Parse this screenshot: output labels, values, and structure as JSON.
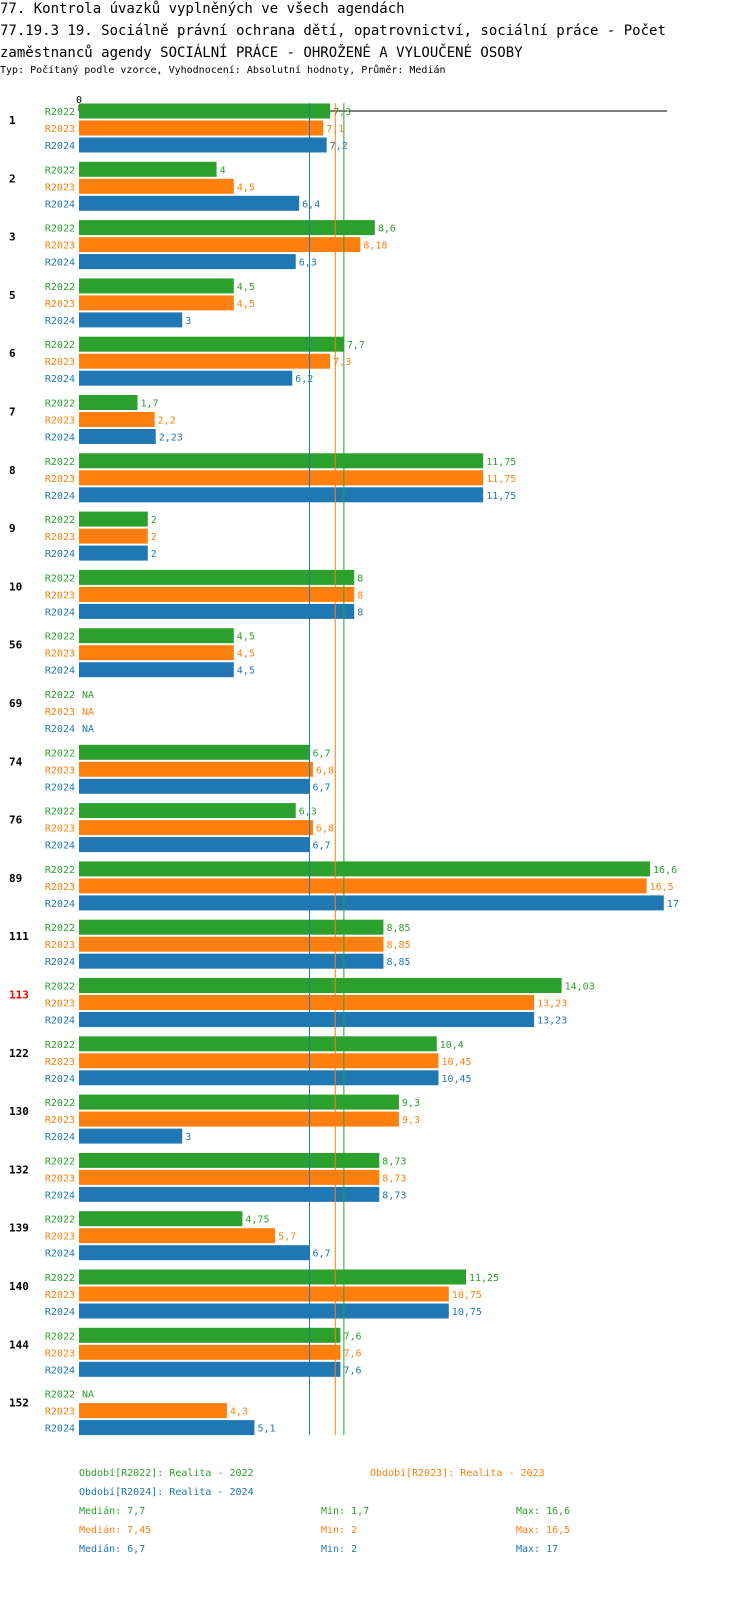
{
  "title": "77. Kontrola úvazků vyplněných ve všech agendách",
  "subtitle": "77.19.3 19. Sociálně právní ochrana dětí, opatrovnictví, sociální práce - Počet zaměstnanců agendy SOCIÁLNÍ PRÁCE - OHROŽENÉ A VYLOUČENÉ OSOBY",
  "meta": "Typ: Počítaný podle vzorce, Vyhodnocení: Absolutní hodnoty, Průměr: Medián",
  "colors": {
    "R2022": "#2ca02c",
    "R2023": "#ff7f0e",
    "R2024": "#1f77b4",
    "highlight": "#ff0000"
  },
  "chart_data": {
    "type": "bar",
    "orientation": "horizontal",
    "axis_zero_label": "0",
    "xlim": [
      0,
      17
    ],
    "highlight_category": "113",
    "series_names": [
      "R2022",
      "R2023",
      "R2024"
    ],
    "categories": [
      {
        "id": "1",
        "values": [
          "7,3",
          "7,1",
          "7,2"
        ]
      },
      {
        "id": "2",
        "values": [
          "4",
          "4,5",
          "6,4"
        ]
      },
      {
        "id": "3",
        "values": [
          "8,6",
          "8,18",
          "6,3"
        ]
      },
      {
        "id": "5",
        "values": [
          "4,5",
          "4,5",
          "3"
        ]
      },
      {
        "id": "6",
        "values": [
          "7,7",
          "7,3",
          "6,2"
        ]
      },
      {
        "id": "7",
        "values": [
          "1,7",
          "2,2",
          "2,23"
        ]
      },
      {
        "id": "8",
        "values": [
          "11,75",
          "11,75",
          "11,75"
        ]
      },
      {
        "id": "9",
        "values": [
          "2",
          "2",
          "2"
        ]
      },
      {
        "id": "10",
        "values": [
          "8",
          "8",
          "8"
        ]
      },
      {
        "id": "56",
        "values": [
          "4,5",
          "4,5",
          "4,5"
        ]
      },
      {
        "id": "69",
        "values": [
          "NA",
          "NA",
          "NA"
        ]
      },
      {
        "id": "74",
        "values": [
          "6,7",
          "6,8",
          "6,7"
        ]
      },
      {
        "id": "76",
        "values": [
          "6,3",
          "6,8",
          "6,7"
        ]
      },
      {
        "id": "89",
        "values": [
          "16,6",
          "16,5",
          "17"
        ]
      },
      {
        "id": "111",
        "values": [
          "8,85",
          "8,85",
          "8,85"
        ]
      },
      {
        "id": "113",
        "values": [
          "14,03",
          "13,23",
          "13,23"
        ]
      },
      {
        "id": "122",
        "values": [
          "10,4",
          "10,45",
          "10,45"
        ]
      },
      {
        "id": "130",
        "values": [
          "9,3",
          "9,3",
          "3"
        ]
      },
      {
        "id": "132",
        "values": [
          "8,73",
          "8,73",
          "8,73"
        ]
      },
      {
        "id": "139",
        "values": [
          "4,75",
          "5,7",
          "6,7"
        ]
      },
      {
        "id": "140",
        "values": [
          "11,25",
          "10,75",
          "10,75"
        ]
      },
      {
        "id": "144",
        "values": [
          "7,6",
          "7,6",
          "7,6"
        ]
      },
      {
        "id": "152",
        "values": [
          "NA",
          "4,3",
          "5,1"
        ]
      }
    ],
    "median_lines": [
      {
        "series": "R2022",
        "value": 7.7
      },
      {
        "series": "R2023",
        "value": 7.45
      },
      {
        "series": "R2024",
        "value": 6.7
      }
    ],
    "legend": [
      {
        "series": "R2022",
        "label": "Období[R2022]: Realita - 2022"
      },
      {
        "series": "R2023",
        "label": "Období[R2023]: Realita - 2023"
      },
      {
        "series": "R2024",
        "label": "Období[R2024]: Realita - 2024"
      }
    ],
    "stats": [
      {
        "series": "R2022",
        "median": "Medián: 7,7",
        "min": "Min: 1,7",
        "max": "Max: 16,6"
      },
      {
        "series": "R2023",
        "median": "Medián: 7,45",
        "min": "Min: 2",
        "max": "Max: 16,5"
      },
      {
        "series": "R2024",
        "median": "Medián: 6,7",
        "min": "Min: 2",
        "max": "Max: 17"
      }
    ]
  }
}
